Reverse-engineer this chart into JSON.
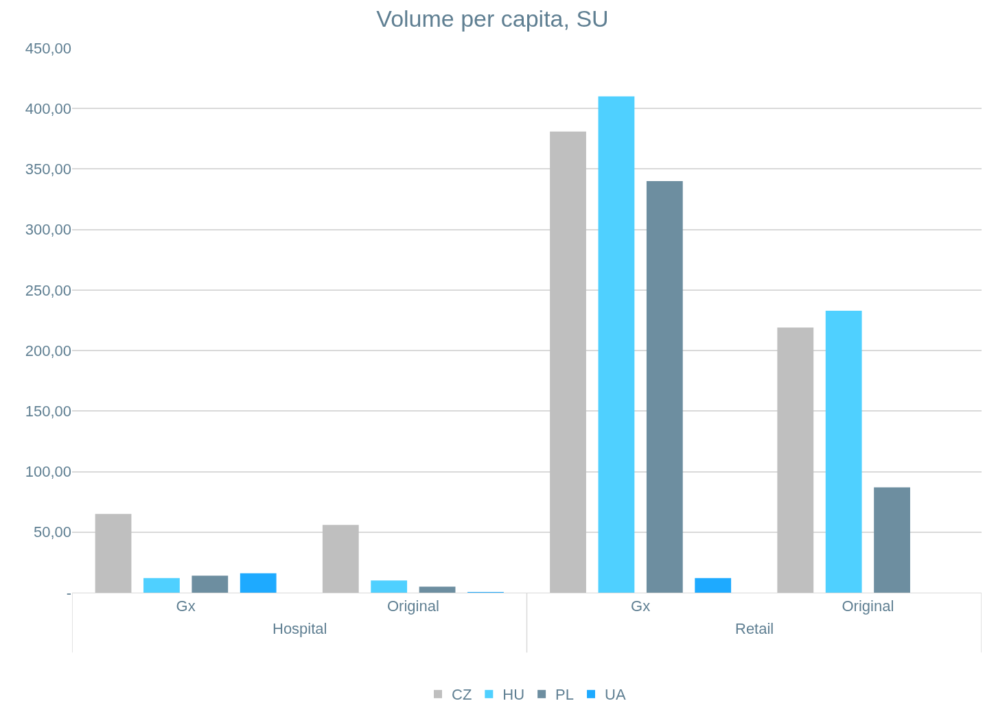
{
  "chart_data": {
    "type": "bar",
    "title": "Volume per capita, SU",
    "categories": [
      "Gx",
      "Original",
      "Gx",
      "Original"
    ],
    "series": [
      {
        "name": "CZ",
        "color": "#bfbfbf",
        "values": [
          65,
          56,
          381,
          219
        ]
      },
      {
        "name": "HU",
        "color": "#4fd0ff",
        "values": [
          12,
          10,
          410,
          233
        ]
      },
      {
        "name": "PL",
        "color": "#6d8ea0",
        "values": [
          14,
          5,
          340,
          87
        ]
      },
      {
        "name": "UA",
        "color": "#1eaaff",
        "values": [
          16,
          0.5,
          12,
          null
        ]
      }
    ],
    "annotations": [
      "Hospital",
      "Retail"
    ],
    "ylim": [
      0,
      450
    ],
    "yticks": [
      {
        "value": 0,
        "label": "-"
      },
      {
        "value": 50,
        "label": "50,00"
      },
      {
        "value": 100,
        "label": "100,00"
      },
      {
        "value": 150,
        "label": "150,00"
      },
      {
        "value": 200,
        "label": "200,00"
      },
      {
        "value": 250,
        "label": "250,00"
      },
      {
        "value": 300,
        "label": "300,00"
      },
      {
        "value": 350,
        "label": "350,00"
      },
      {
        "value": 400,
        "label": "400,00"
      },
      {
        "value": 450,
        "label": "450,00"
      }
    ],
    "grid": "y",
    "legend": "bottom"
  }
}
